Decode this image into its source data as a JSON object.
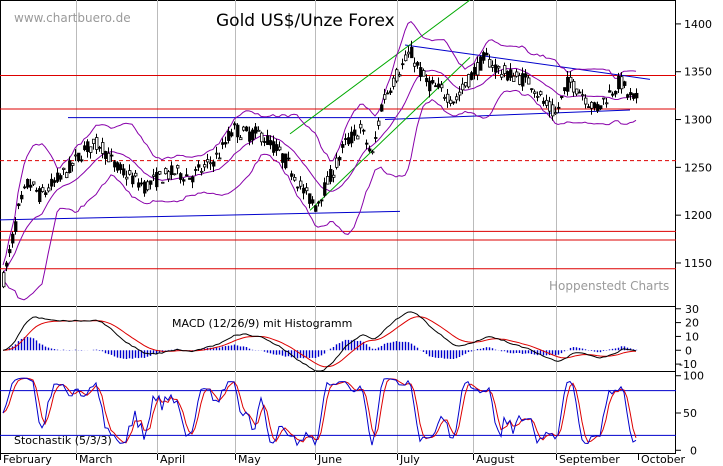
{
  "header": {
    "watermark": "www.chartbuero.de",
    "title": "Gold US$/Unze Forex",
    "credit": "Hoppenstedt Charts"
  },
  "chart_data": [
    {
      "type": "candlestick",
      "title": "Gold US$/Unze Forex",
      "ylim": [
        1105,
        1425
      ],
      "yticks": [
        1150,
        1200,
        1250,
        1300,
        1350,
        1400
      ],
      "months": [
        "February",
        "March",
        "April",
        "May",
        "June",
        "July",
        "August",
        "September",
        "October"
      ],
      "overlays": [
        "Bollinger bands",
        "support/resistance lines",
        "trend channel"
      ],
      "price_path": [
        [
          0,
          1120
        ],
        [
          8,
          1155
        ],
        [
          18,
          1205
        ],
        [
          28,
          1235
        ],
        [
          40,
          1220
        ],
        [
          55,
          1235
        ],
        [
          70,
          1250
        ],
        [
          85,
          1270
        ],
        [
          100,
          1275
        ],
        [
          115,
          1250
        ],
        [
          130,
          1240
        ],
        [
          145,
          1230
        ],
        [
          160,
          1240
        ],
        [
          175,
          1245
        ],
        [
          190,
          1240
        ],
        [
          205,
          1250
        ],
        [
          220,
          1265
        ],
        [
          232,
          1290
        ],
        [
          245,
          1285
        ],
        [
          260,
          1285
        ],
        [
          275,
          1270
        ],
        [
          290,
          1250
        ],
        [
          303,
          1225
        ],
        [
          315,
          1210
        ],
        [
          330,
          1240
        ],
        [
          345,
          1275
        ],
        [
          360,
          1290
        ],
        [
          372,
          1262
        ],
        [
          382,
          1320
        ],
        [
          395,
          1345
        ],
        [
          410,
          1370
        ],
        [
          425,
          1340
        ],
        [
          440,
          1330
        ],
        [
          455,
          1320
        ],
        [
          470,
          1345
        ],
        [
          485,
          1365
        ],
        [
          500,
          1350
        ],
        [
          515,
          1345
        ],
        [
          530,
          1340
        ],
        [
          545,
          1315
        ],
        [
          555,
          1305
        ],
        [
          568,
          1340
        ],
        [
          580,
          1330
        ],
        [
          595,
          1310
        ],
        [
          607,
          1325
        ],
        [
          620,
          1340
        ],
        [
          628,
          1325
        ],
        [
          635,
          1320
        ]
      ],
      "horizontal_lines": [
        {
          "value": 1346,
          "color": "#dd0000",
          "style": "solid"
        },
        {
          "value": 1311,
          "color": "#dd0000",
          "style": "solid"
        },
        {
          "value": 1257,
          "color": "#dd0000",
          "style": "dashed"
        },
        {
          "value": 1183,
          "color": "#dd0000",
          "style": "solid"
        },
        {
          "value": 1174,
          "color": "#dd0000",
          "style": "solid"
        },
        {
          "value": 1144,
          "color": "#dd0000",
          "style": "solid"
        }
      ]
    },
    {
      "type": "line",
      "title": "MACD (12/26/9) mit Histogramm",
      "ylim": [
        -15,
        32
      ],
      "yticks": [
        -10,
        0,
        10,
        20,
        30
      ]
    },
    {
      "type": "line",
      "title": "Stochastik (5/3/3)",
      "ylim": [
        -5,
        105
      ],
      "yticks": [
        0,
        50,
        100
      ],
      "levels": [
        80,
        20
      ]
    }
  ],
  "colors": {
    "candles": "#000000",
    "bollinger": "#8800aa",
    "support_lines": "#0000cc",
    "resistance_lines": "#dd0000",
    "channel": "#00aa00",
    "macd": "#000000",
    "signal": "#dd0000",
    "histogram": "#0000cc",
    "stoch_k": "#0000cc",
    "stoch_d": "#dd0000"
  }
}
